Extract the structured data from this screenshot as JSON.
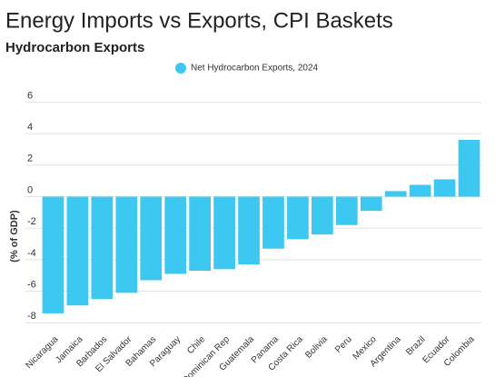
{
  "chart_data": {
    "type": "bar",
    "title": "Energy Imports vs Exports, CPI Baskets",
    "subtitle": "Hydrocarbon Exports",
    "y_label": "(% of GDP)",
    "series": [
      {
        "name": "Net Hydrocarbon Exports, 2024",
        "color": "#3cc8f0",
        "values": [
          -7.4,
          -6.9,
          -6.5,
          -6.1,
          -5.3,
          -4.9,
          -4.7,
          -4.6,
          -4.3,
          -3.3,
          -2.7,
          -2.4,
          -1.8,
          -0.9,
          0.35,
          0.75,
          1.1,
          3.6
        ]
      }
    ],
    "categories": [
      "Nicaragua",
      "Jamaica",
      "Barbados",
      "El Salvador",
      "Bahamas",
      "Paraguay",
      "Chile",
      "Dominican Rep",
      "Guatemala",
      "Panama",
      "Costa Rica",
      "Bolivia",
      "Peru",
      "Mexico",
      "Argentina",
      "Brazil",
      "Ecuador",
      "Colombia"
    ],
    "ylim": [
      -8.5,
      7
    ],
    "yticks": [
      -8,
      -6,
      -4,
      -2,
      0,
      2,
      4,
      6
    ],
    "grid": true
  }
}
